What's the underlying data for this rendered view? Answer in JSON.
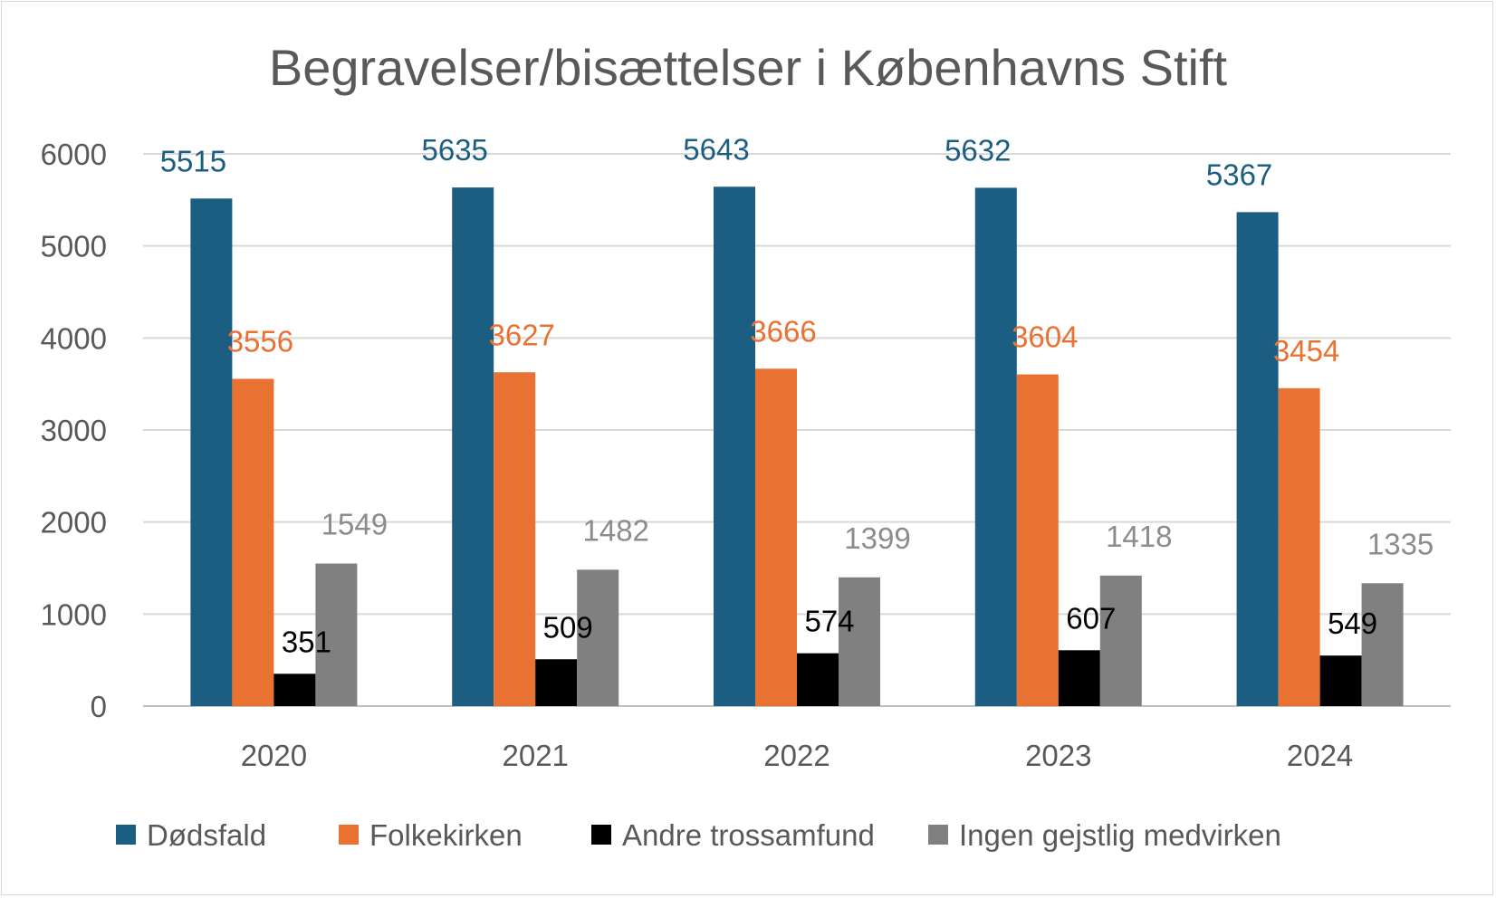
{
  "chart_data": {
    "type": "bar",
    "title": "Begravelser/bisættelser i Københavns Stift",
    "categories": [
      "2020",
      "2021",
      "2022",
      "2023",
      "2024"
    ],
    "series": [
      {
        "name": "Dødsfald",
        "color": "#1b5e82",
        "label_color": "#1b5e82",
        "values": [
          5515,
          5635,
          5643,
          5632,
          5367
        ]
      },
      {
        "name": "Folkekirken",
        "color": "#e97132",
        "label_color": "#e97132",
        "values": [
          3556,
          3627,
          3666,
          3604,
          3454
        ]
      },
      {
        "name": "Andre trossamfund",
        "color": "#000000",
        "label_color": "#000000",
        "values": [
          351,
          509,
          574,
          607,
          549
        ]
      },
      {
        "name": "Ingen gejstlig medvirken",
        "color": "#808080",
        "label_color": "#8c8c8c",
        "values": [
          1549,
          1482,
          1399,
          1418,
          1335
        ]
      }
    ],
    "yticks": [
      "0",
      "1000",
      "2000",
      "3000",
      "4000",
      "5000",
      "6000"
    ],
    "ylim": [
      0,
      6000
    ],
    "xlabel": "",
    "ylabel": "",
    "grid": true,
    "legend": "bottom"
  }
}
